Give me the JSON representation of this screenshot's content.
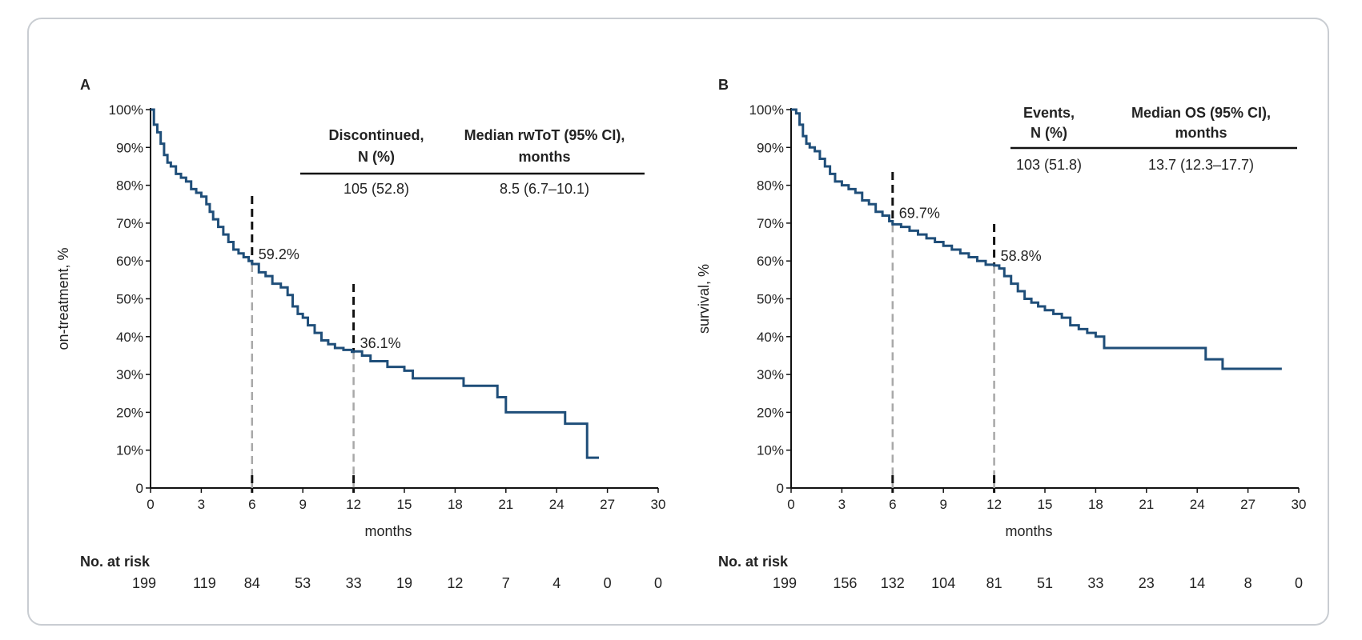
{
  "chart_data": [
    {
      "panel_label": "A",
      "type": "line",
      "ylabel": "on-treatment, %",
      "xlabel": "months",
      "xlim": [
        0,
        30
      ],
      "ylim": [
        0,
        100
      ],
      "x_ticks": [
        "0",
        "3",
        "6",
        "9",
        "12",
        "15",
        "18",
        "21",
        "24",
        "27",
        "30"
      ],
      "y_ticks": [
        "0",
        "10%",
        "20%",
        "30%",
        "40%",
        "50%",
        "60%",
        "70%",
        "80%",
        "90%",
        "100%"
      ],
      "series": [
        {
          "x": [
            0,
            0.2,
            0.4,
            0.6,
            0.8,
            1.0,
            1.2,
            1.5,
            1.8,
            2.1,
            2.4,
            2.7,
            3.0,
            3.3,
            3.5,
            3.7,
            4.0,
            4.3,
            4.6,
            4.9,
            5.2,
            5.5,
            5.8,
            6.0,
            6.4,
            6.8,
            7.2,
            7.7,
            8.1,
            8.4,
            8.7,
            9.0,
            9.3,
            9.7,
            10.1,
            10.5,
            10.9,
            11.4,
            11.9,
            12.0,
            12.5,
            13.0,
            14.0,
            15.0,
            15.5,
            18.0,
            18.5,
            20.0,
            20.5,
            21.0,
            23.5,
            24.5,
            25.8,
            26.5
          ],
          "y": [
            100,
            96,
            94,
            91,
            88,
            86,
            85,
            83,
            82,
            81,
            79,
            78,
            77,
            75,
            73,
            71,
            69,
            67,
            65,
            63,
            62,
            61,
            60,
            59.2,
            57,
            56,
            54,
            53,
            51,
            48,
            46,
            45,
            43,
            41,
            39,
            38,
            37,
            36.5,
            36,
            36.1,
            35,
            33.5,
            32,
            31,
            29,
            29,
            27,
            27,
            24,
            20,
            20,
            17,
            8,
            8
          ]
        }
      ],
      "annotations": [
        {
          "x": 6,
          "y": 59.2,
          "text": "59.2%"
        },
        {
          "x": 12,
          "y": 36.1,
          "text": "36.1%"
        }
      ],
      "summary_table": {
        "col1_header": [
          "Discontinued,",
          "N (%)"
        ],
        "col2_header": [
          "Median rwToT (95% CI),",
          "months"
        ],
        "col1_value": "105 (52.8)",
        "col2_value": "8.5 (6.7–10.1)"
      },
      "at_risk": {
        "label": "No. at risk",
        "values": [
          "199",
          "119",
          "84",
          "53",
          "33",
          "19",
          "12",
          "7",
          "4",
          "0",
          "0"
        ]
      }
    },
    {
      "panel_label": "B",
      "type": "line",
      "ylabel": "survival, %",
      "xlabel": "months",
      "xlim": [
        0,
        30
      ],
      "ylim": [
        0,
        100
      ],
      "x_ticks": [
        "0",
        "3",
        "6",
        "9",
        "12",
        "15",
        "18",
        "21",
        "24",
        "27",
        "30"
      ],
      "y_ticks": [
        "0",
        "10%",
        "20%",
        "30%",
        "40%",
        "50%",
        "60%",
        "70%",
        "80%",
        "90%",
        "100%"
      ],
      "series": [
        {
          "x": [
            0,
            0.3,
            0.5,
            0.7,
            0.9,
            1.1,
            1.4,
            1.7,
            2.0,
            2.3,
            2.6,
            3.0,
            3.4,
            3.8,
            4.2,
            4.6,
            5.0,
            5.4,
            5.8,
            6.0,
            6.5,
            7.0,
            7.5,
            8.0,
            8.5,
            9.0,
            9.5,
            10.0,
            10.5,
            11.0,
            11.5,
            12.0,
            12.3,
            12.6,
            13.0,
            13.4,
            13.8,
            14.2,
            14.6,
            15.0,
            15.5,
            16.0,
            16.5,
            17.0,
            17.5,
            18.0,
            18.5,
            24.0,
            24.5,
            25.0,
            25.5,
            29.0
          ],
          "y": [
            100,
            99,
            96,
            93,
            91,
            90,
            89,
            87,
            85,
            83,
            81,
            80,
            79,
            78,
            76,
            75,
            73,
            72,
            70.5,
            69.7,
            69,
            68,
            67,
            66,
            65,
            64,
            63,
            62,
            61,
            60,
            59,
            58.8,
            58,
            56,
            54,
            52,
            50,
            49,
            48,
            47,
            46,
            45,
            43,
            42,
            41,
            40,
            37,
            37,
            34,
            34,
            31.5,
            31.5
          ]
        }
      ],
      "annotations": [
        {
          "x": 6,
          "y": 69.7,
          "text": "69.7%"
        },
        {
          "x": 12,
          "y": 58.8,
          "text": "58.8%"
        }
      ],
      "summary_table": {
        "col1_header": [
          "Events,",
          "N (%)"
        ],
        "col2_header": [
          "Median OS (95% CI),",
          "months"
        ],
        "col1_value": "103 (51.8)",
        "col2_value": "13.7 (12.3–17.7)"
      },
      "at_risk": {
        "label": "No. at risk",
        "values": [
          "199",
          "156",
          "132",
          "104",
          "81",
          "51",
          "33",
          "23",
          "14",
          "8",
          "0"
        ]
      }
    }
  ],
  "colors": {
    "curve": "#1f4e79",
    "axis": "#111111",
    "dash_dark": "#111111",
    "dash_light": "#a8a8a8",
    "text": "#222222",
    "frame": "#c9cdd2"
  }
}
